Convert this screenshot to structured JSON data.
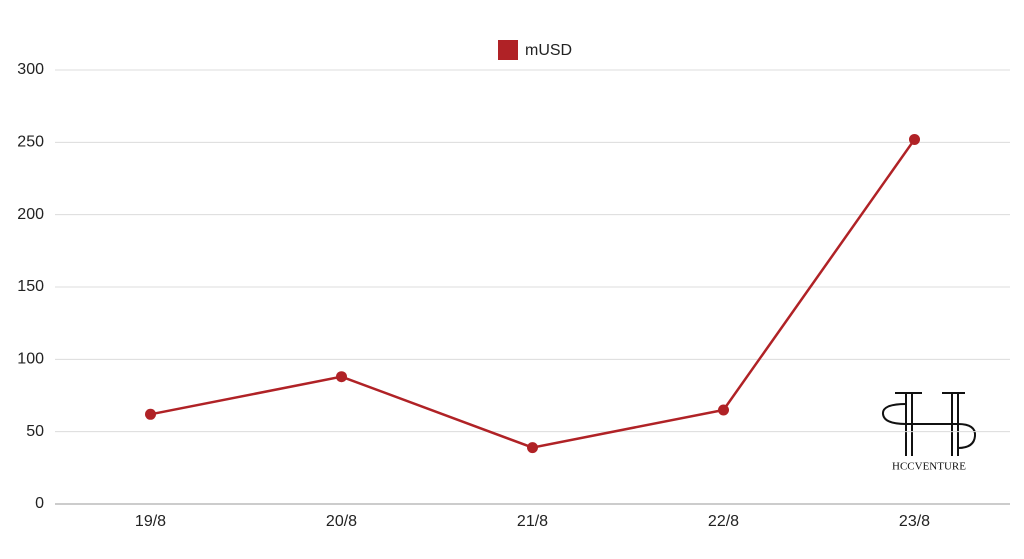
{
  "chart_data": {
    "type": "line",
    "categories": [
      "19/8",
      "20/8",
      "21/8",
      "22/8",
      "23/8"
    ],
    "series": [
      {
        "name": "mUSD",
        "color": "#b02226",
        "values": [
          62,
          88,
          39,
          65,
          252
        ]
      }
    ],
    "ylim": [
      0,
      300
    ],
    "yticks": [
      0,
      50,
      100,
      150,
      200,
      250,
      300
    ],
    "grid": true,
    "legend": "top",
    "watermark": "HCCVENTURE"
  }
}
